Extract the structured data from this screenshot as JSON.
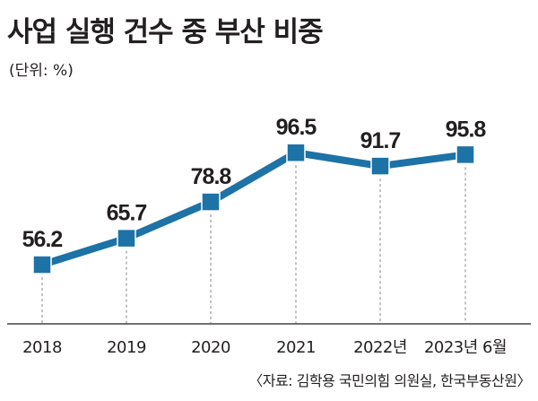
{
  "title": "사업 실행 건수 중 부산 비중",
  "unit_label": "(단위: %)",
  "source": "〈자료: 김학용 국민의힘 의원실, 한국부동산원〉",
  "colors": {
    "line": "#1d72a6",
    "marker": "#1d72a6",
    "axis": "#444444",
    "dashed": "#9a9a9a",
    "text": "#231f20"
  },
  "chart_data": {
    "type": "line",
    "title": "사업 실행 건수 중 부산 비중",
    "xlabel": "",
    "ylabel": "",
    "categories": [
      "2018",
      "2019",
      "2020",
      "2021",
      "2022년",
      "2023년 6월"
    ],
    "series": [
      {
        "name": "부산 비중",
        "values": [
          56.2,
          65.7,
          78.8,
          96.5,
          91.7,
          95.8
        ]
      }
    ],
    "value_labels": [
      "56.2",
      "65.7",
      "78.8",
      "96.5",
      "91.7",
      "95.8"
    ],
    "ylim": [
      42,
      104
    ],
    "grid": false,
    "legend": "none"
  }
}
